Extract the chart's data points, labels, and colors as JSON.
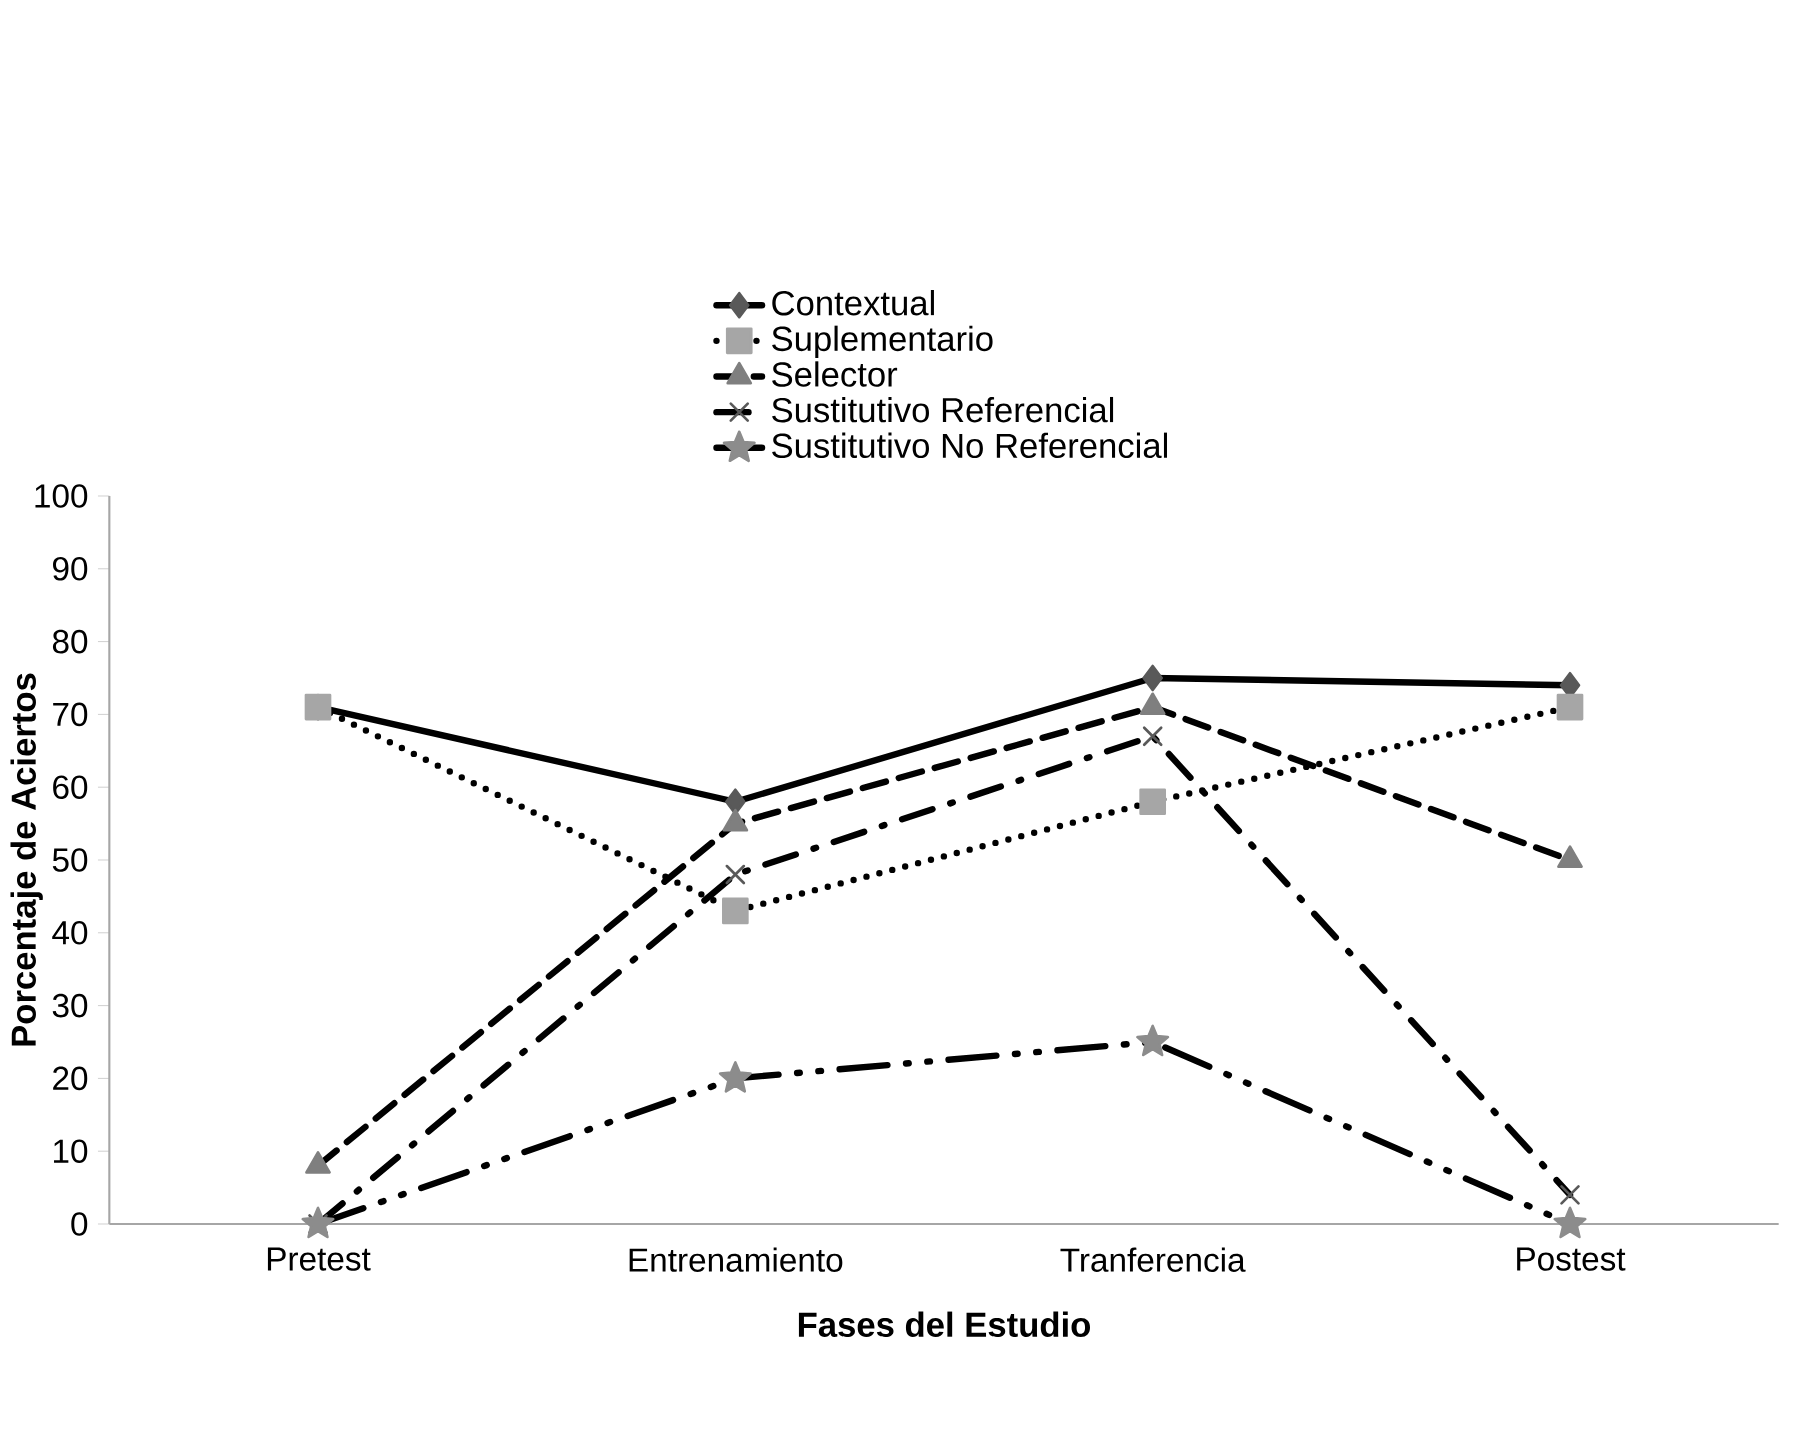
{
  "chart_data": {
    "type": "line",
    "xlabel": "Fases del Estudio",
    "ylabel": "Porcentaje de Aciertos",
    "categories": [
      "Pretest",
      "Entrenamiento",
      "Tranferencia",
      "Postest"
    ],
    "series": [
      {
        "name": "Contextual",
        "color": "#595959",
        "marker": "diamond",
        "line_style": "solid",
        "values": [
          71,
          58,
          75,
          74
        ]
      },
      {
        "name": "Suplementario",
        "color": "#a6a6a6",
        "marker": "square",
        "line_style": "dotted",
        "values": [
          71,
          43,
          58,
          71
        ]
      },
      {
        "name": "Selector",
        "color": "#7f7f7f",
        "marker": "triangle",
        "line_style": "dashed",
        "values": [
          8,
          55,
          71,
          50
        ]
      },
      {
        "name": "Sustitutivo Referencial",
        "color": "#595959",
        "marker": "cross",
        "line_style": "dashdot",
        "values": [
          0,
          48,
          67,
          4
        ]
      },
      {
        "name": "Sustitutivo No Referencial",
        "color": "#8c8c8c",
        "marker": "star",
        "line_style": "longdashdot",
        "values": [
          0,
          20,
          25,
          0
        ]
      }
    ],
    "ylim": [
      0,
      100
    ],
    "yticks": [
      0,
      10,
      20,
      30,
      40,
      50,
      60,
      70,
      80,
      90,
      100
    ],
    "legend": "top",
    "grid": false
  }
}
